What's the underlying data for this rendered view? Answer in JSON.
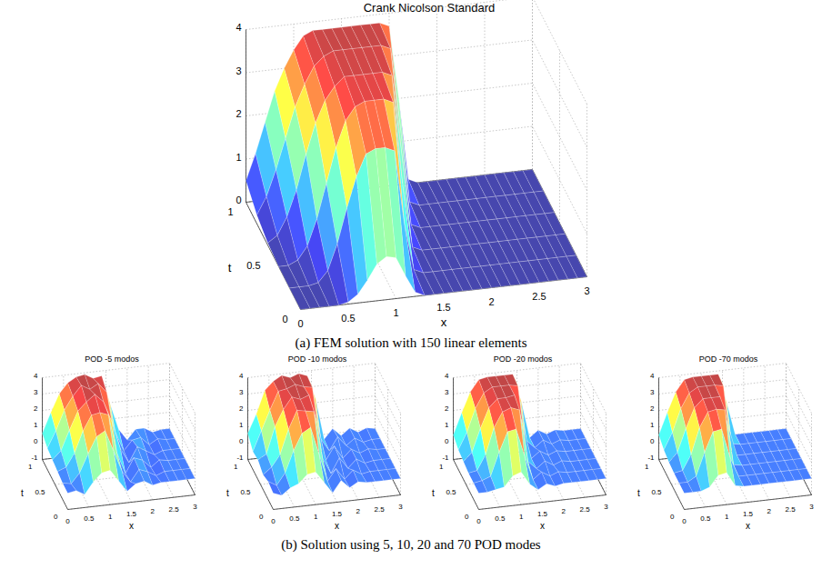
{
  "chart_data": [
    {
      "type": "surface",
      "title": "Crank Nicolson Standard",
      "x_label": "x",
      "y_label": "t",
      "x": [
        0,
        0.1,
        0.2,
        0.3,
        0.4,
        0.5,
        0.6,
        0.7,
        0.8,
        0.9,
        1.0,
        1.1,
        1.2,
        1.3,
        1.4,
        1.5,
        1.6,
        1.7,
        1.8,
        1.9,
        2.0,
        2.1,
        2.2,
        2.3,
        2.4,
        2.5,
        2.6,
        2.7,
        2.8,
        2.9,
        3.0
      ],
      "y": [
        0,
        0.2,
        0.4,
        0.6,
        0.8,
        1
      ],
      "z": [
        [
          0,
          0,
          0,
          0,
          0,
          0.05,
          0.2,
          0.5,
          0.85,
          1.0,
          0.95,
          0.5,
          0.1,
          0,
          0,
          0,
          0,
          0,
          0,
          0,
          0,
          0,
          0,
          0,
          0,
          0,
          0,
          0,
          0,
          0,
          0
        ],
        [
          0,
          0,
          0,
          0.05,
          0.3,
          0.9,
          1.7,
          2.4,
          2.9,
          3.0,
          3.0,
          2.9,
          1.2,
          0.1,
          0,
          0,
          0,
          0,
          0,
          0,
          0,
          0,
          0,
          0,
          0,
          0,
          0,
          0,
          0,
          0,
          0
        ],
        [
          0,
          0,
          0.1,
          0.4,
          1.0,
          1.8,
          2.6,
          3.2,
          3.5,
          3.6,
          3.6,
          3.6,
          3.5,
          1.5,
          0.1,
          0,
          0,
          0,
          0,
          0,
          0,
          0,
          0,
          0,
          0,
          0,
          0,
          0,
          0,
          0,
          0
        ],
        [
          0.05,
          0.2,
          0.6,
          1.2,
          2.0,
          2.7,
          3.2,
          3.5,
          3.7,
          3.7,
          3.7,
          3.7,
          3.7,
          3.6,
          1.8,
          0.1,
          0,
          0,
          0,
          0,
          0,
          0,
          0,
          0,
          0,
          0,
          0,
          0,
          0,
          0,
          0
        ],
        [
          0.2,
          0.6,
          1.2,
          1.9,
          2.6,
          3.1,
          3.5,
          3.7,
          3.8,
          3.8,
          3.8,
          3.8,
          3.8,
          3.8,
          3.7,
          1.9,
          0.1,
          0,
          0,
          0,
          0,
          0,
          0,
          0,
          0,
          0,
          0,
          0,
          0,
          0,
          0
        ],
        [
          0.5,
          1.1,
          1.8,
          2.5,
          3.0,
          3.4,
          3.7,
          3.8,
          3.8,
          3.8,
          3.8,
          3.8,
          3.8,
          3.8,
          3.8,
          3.7,
          2.0,
          0.1,
          0,
          0,
          0,
          0,
          0,
          0,
          0,
          0,
          0,
          0,
          0,
          0,
          0
        ]
      ],
      "xlim": [
        0,
        3
      ],
      "ylim": [
        0,
        1
      ],
      "zlim": [
        0,
        4
      ],
      "xticks": [
        0,
        0.5,
        1,
        1.5,
        2,
        2.5,
        3
      ],
      "yticks": [
        0,
        0.5,
        1
      ],
      "zticks": [
        0,
        1,
        2,
        3,
        4
      ],
      "grid": true
    },
    {
      "type": "surface",
      "title": "POD -5 modos",
      "x_label": "x",
      "y_label": "t",
      "x": [
        0,
        0.2,
        0.4,
        0.6,
        0.8,
        1.0,
        1.2,
        1.4,
        1.6,
        1.8,
        2.0,
        2.2,
        2.4,
        2.6,
        2.8,
        3.0
      ],
      "y": [
        0,
        0.2,
        0.4,
        0.6,
        0.8,
        1
      ],
      "z": [
        [
          0,
          0.1,
          -0.2,
          0.5,
          1.0,
          1.1,
          0.4,
          -0.3,
          0.1,
          0.2,
          -0.1,
          0,
          0,
          0,
          0,
          0
        ],
        [
          0,
          -0.1,
          0.5,
          1.6,
          2.6,
          2.9,
          1.6,
          0.3,
          -0.4,
          0.3,
          0.1,
          -0.2,
          0,
          0,
          0,
          0
        ],
        [
          0.1,
          0.3,
          1.1,
          2.4,
          3.3,
          3.4,
          3.2,
          0.8,
          -0.5,
          0.4,
          0.2,
          -0.3,
          0.1,
          0,
          0,
          0
        ],
        [
          0.2,
          0.7,
          1.9,
          3.0,
          3.5,
          3.9,
          3.4,
          2.1,
          0.4,
          -0.5,
          0.4,
          0.1,
          -0.2,
          0,
          0,
          0
        ],
        [
          0.3,
          1.3,
          2.5,
          3.3,
          3.9,
          3.6,
          3.9,
          3.3,
          0.8,
          -0.4,
          0.2,
          0.3,
          -0.2,
          0.1,
          0,
          0
        ],
        [
          0.6,
          1.8,
          2.9,
          3.5,
          3.8,
          3.9,
          3.6,
          3.7,
          1.9,
          0.3,
          -0.4,
          0.2,
          0.2,
          -0.1,
          0,
          0
        ]
      ],
      "xlim": [
        0,
        3
      ],
      "ylim": [
        0,
        1
      ],
      "zlim": [
        -1,
        4
      ],
      "xticks": [
        0,
        0.5,
        1,
        1.5,
        2,
        2.5,
        3
      ],
      "yticks": [
        0,
        0.5,
        1
      ],
      "zticks": [
        -1,
        0,
        1,
        2,
        3,
        4
      ],
      "grid": true
    },
    {
      "type": "surface",
      "title": "POD -10 modos",
      "x_label": "x",
      "y_label": "t",
      "x": [
        0,
        0.2,
        0.4,
        0.6,
        0.8,
        1.0,
        1.2,
        1.4,
        1.6,
        1.8,
        2.0,
        2.2,
        2.4,
        2.6,
        2.8,
        3.0
      ],
      "y": [
        0,
        0.2,
        0.4,
        0.6,
        0.8,
        1
      ],
      "z": [
        [
          0,
          -0.2,
          0.2,
          0.4,
          0.9,
          1.0,
          0.3,
          -0.4,
          0.3,
          -0.2,
          0.1,
          0,
          0,
          0,
          0,
          0
        ],
        [
          0.1,
          -0.2,
          0.5,
          1.8,
          2.8,
          3.1,
          1.4,
          -0.3,
          0.4,
          -0.3,
          0.2,
          -0.1,
          0,
          0,
          0,
          0
        ],
        [
          -0.1,
          0.3,
          1.0,
          2.5,
          3.6,
          3.5,
          3.4,
          0.5,
          -0.5,
          0.4,
          -0.3,
          0.2,
          -0.1,
          0,
          0,
          0
        ],
        [
          0.2,
          0.5,
          2.1,
          3.1,
          3.8,
          3.6,
          3.8,
          2.0,
          -0.3,
          0.5,
          -0.3,
          0.2,
          -0.1,
          0.1,
          0,
          0
        ],
        [
          0.1,
          1.3,
          2.5,
          3.6,
          3.7,
          3.9,
          3.7,
          3.6,
          0.4,
          -0.4,
          0.4,
          -0.2,
          0.2,
          -0.1,
          0,
          0
        ],
        [
          0.6,
          1.7,
          3.1,
          3.6,
          3.9,
          3.7,
          3.9,
          3.7,
          2.2,
          -0.3,
          0.3,
          -0.2,
          0.2,
          -0.1,
          0.1,
          0
        ]
      ],
      "xlim": [
        0,
        3
      ],
      "ylim": [
        0,
        1
      ],
      "zlim": [
        -1,
        4
      ],
      "xticks": [
        0,
        0.5,
        1,
        1.5,
        2,
        2.5,
        3
      ],
      "yticks": [
        0,
        0.5,
        1
      ],
      "zticks": [
        -1,
        0,
        1,
        2,
        3,
        4
      ],
      "grid": true
    },
    {
      "type": "surface",
      "title": "POD -20 modos",
      "x_label": "x",
      "y_label": "t",
      "x": [
        0,
        0.2,
        0.4,
        0.6,
        0.8,
        1.0,
        1.2,
        1.4,
        1.6,
        1.8,
        2.0,
        2.2,
        2.4,
        2.6,
        2.8,
        3.0
      ],
      "y": [
        0,
        0.2,
        0.4,
        0.6,
        0.8,
        1
      ],
      "z": [
        [
          0,
          0,
          0.1,
          0.2,
          0.8,
          1.0,
          0.2,
          -0.2,
          0.1,
          -0.1,
          0,
          0,
          0,
          0,
          0,
          0
        ],
        [
          0,
          0.1,
          0.3,
          1.7,
          2.9,
          3.0,
          1.3,
          -0.2,
          0.2,
          -0.1,
          0.1,
          0,
          0,
          0,
          0,
          0
        ],
        [
          0,
          0.1,
          1.0,
          2.6,
          3.5,
          3.7,
          3.5,
          0.3,
          -0.2,
          0.2,
          -0.1,
          0.1,
          0,
          0,
          0,
          0
        ],
        [
          0.1,
          0.6,
          2.0,
          3.2,
          3.7,
          3.7,
          3.8,
          1.9,
          -0.2,
          0.2,
          -0.1,
          0.1,
          0,
          0,
          0,
          0
        ],
        [
          0.2,
          1.2,
          2.6,
          3.5,
          3.8,
          3.8,
          3.8,
          3.7,
          0.3,
          -0.2,
          0.2,
          -0.1,
          0.1,
          0,
          0,
          0
        ],
        [
          0.5,
          1.8,
          3.0,
          3.7,
          3.8,
          3.8,
          3.8,
          3.8,
          2.1,
          -0.2,
          0.2,
          -0.1,
          0.1,
          0,
          0,
          0
        ]
      ],
      "xlim": [
        0,
        3
      ],
      "ylim": [
        0,
        1
      ],
      "zlim": [
        -1,
        4
      ],
      "xticks": [
        0,
        0.5,
        1,
        1.5,
        2,
        2.5,
        3
      ],
      "yticks": [
        0,
        0.5,
        1
      ],
      "zticks": [
        -1,
        0,
        1,
        2,
        3,
        4
      ],
      "grid": true
    },
    {
      "type": "surface",
      "title": "POD -70 modos",
      "x_label": "x",
      "y_label": "t",
      "x": [
        0,
        0.2,
        0.4,
        0.6,
        0.8,
        1.0,
        1.2,
        1.4,
        1.6,
        1.8,
        2.0,
        2.2,
        2.4,
        2.6,
        2.8,
        3.0
      ],
      "y": [
        0,
        0.2,
        0.4,
        0.6,
        0.8,
        1
      ],
      "z": [
        [
          0,
          0,
          0,
          0.2,
          0.85,
          0.95,
          0.1,
          0,
          0,
          0,
          0,
          0,
          0,
          0,
          0,
          0
        ],
        [
          0,
          0,
          0.3,
          1.7,
          2.9,
          3.0,
          1.2,
          0,
          0,
          0,
          0,
          0,
          0,
          0,
          0,
          0
        ],
        [
          0,
          0.1,
          1.0,
          2.6,
          3.5,
          3.6,
          3.5,
          0.1,
          0,
          0,
          0,
          0,
          0,
          0,
          0,
          0
        ],
        [
          0.05,
          0.6,
          2.0,
          3.2,
          3.7,
          3.7,
          3.7,
          1.8,
          0,
          0,
          0,
          0,
          0,
          0,
          0,
          0
        ],
        [
          0.2,
          1.2,
          2.6,
          3.5,
          3.8,
          3.8,
          3.8,
          3.7,
          0.1,
          0,
          0,
          0,
          0,
          0,
          0,
          0
        ],
        [
          0.5,
          1.8,
          3.0,
          3.7,
          3.8,
          3.8,
          3.8,
          3.8,
          2.0,
          0,
          0,
          0,
          0,
          0,
          0,
          0
        ]
      ],
      "xlim": [
        0,
        3
      ],
      "ylim": [
        0,
        1
      ],
      "zlim": [
        -1,
        4
      ],
      "xticks": [
        0,
        0.5,
        1,
        1.5,
        2,
        2.5,
        3
      ],
      "yticks": [
        0,
        0.5,
        1
      ],
      "zticks": [
        -1,
        0,
        1,
        2,
        3,
        4
      ],
      "grid": true
    }
  ],
  "captions": [
    "(a) FEM solution with 150 linear elements",
    "(b) Solution using 5, 10, 20 and 70 POD modes"
  ]
}
